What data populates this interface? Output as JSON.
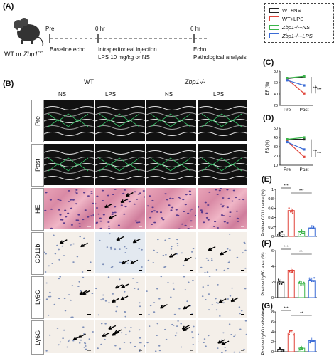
{
  "panels": {
    "a": "(A)",
    "b": "(B)",
    "c": "(C)",
    "d": "(D)",
    "e": "(E)",
    "f": "(F)",
    "g": "(G)"
  },
  "timeline": {
    "mouse_label_pre": "WT or ",
    "mouse_label_gene": "Zbp1",
    "mouse_label_sup": "-/-",
    "t0": "Pre",
    "t1": "0 hr",
    "t2": "6 hr",
    "step0": "Baseline echo",
    "step1_line1": "Intraperitoneal injection",
    "step1_line2": "LPS 10 mg/kg or NS",
    "step2_line1": "Echo",
    "step2_line2": "Pathological analysis"
  },
  "legend": [
    {
      "label": "WT+NS",
      "color": "#222222"
    },
    {
      "label": "WT+LPS",
      "color": "#e0443a"
    },
    {
      "label": "Zbp1-/-+NS",
      "color": "#3bb54a"
    },
    {
      "label": "Zbp1-/-+LPS",
      "color": "#3a6bd6"
    }
  ],
  "grid": {
    "group_wt": "WT",
    "group_ko": "Zbp1-/-",
    "cols": [
      "NS",
      "LPS",
      "NS",
      "LPS"
    ],
    "rows": [
      "Pre",
      "Post",
      "HE",
      "CD11b",
      "Ly6C",
      "Ly6G"
    ]
  },
  "chart_data": [
    {
      "panel": "C",
      "type": "line",
      "ylabel": "EF (%)",
      "categories": [
        "Pre",
        "Post"
      ],
      "ylim": [
        20,
        80
      ],
      "yticks": [
        20,
        40,
        60,
        80
      ],
      "series": [
        {
          "name": "WT+NS",
          "values": [
            67,
            70
          ]
        },
        {
          "name": "WT+LPS",
          "values": [
            66,
            41
          ]
        },
        {
          "name": "Zbp1-/-+NS",
          "values": [
            68,
            71
          ]
        },
        {
          "name": "Zbp1-/-+LPS",
          "values": [
            64,
            55
          ]
        }
      ],
      "significance": [
        "***",
        "***"
      ]
    },
    {
      "panel": "D",
      "type": "line",
      "ylabel": "FS (%)",
      "categories": [
        "Pre",
        "Post"
      ],
      "ylim": [
        10,
        50
      ],
      "yticks": [
        10,
        20,
        30,
        40,
        50
      ],
      "series": [
        {
          "name": "WT+NS",
          "values": [
            38,
            38
          ]
        },
        {
          "name": "WT+LPS",
          "values": [
            36,
            19
          ]
        },
        {
          "name": "Zbp1-/-+NS",
          "values": [
            38,
            40
          ]
        },
        {
          "name": "Zbp1-/-+LPS",
          "values": [
            35,
            27
          ]
        }
      ],
      "significance": [
        "***",
        "***"
      ]
    },
    {
      "panel": "E",
      "type": "bar",
      "ylabel": "Positive CD11b area (%)",
      "categories": [
        "WT+NS",
        "WT+LPS",
        "Zbp1-/-+NS",
        "Zbp1-/-+LPS"
      ],
      "values": [
        0.05,
        0.55,
        0.1,
        0.18
      ],
      "ylim": [
        0,
        1.0
      ],
      "yticks": [
        0.0,
        0.2,
        0.4,
        0.6,
        0.8,
        1.0
      ],
      "significance": [
        "***",
        "***"
      ]
    },
    {
      "panel": "F",
      "type": "bar",
      "ylabel": "Positive Ly6C area (%)",
      "categories": [
        "WT+NS",
        "WT+LPS",
        "Zbp1-/-+NS",
        "Zbp1-/-+LPS"
      ],
      "values": [
        2.0,
        3.5,
        1.8,
        2.2
      ],
      "ylim": [
        0,
        6
      ],
      "yticks": [
        0,
        2,
        4,
        6
      ],
      "significance": [
        "***",
        "***"
      ]
    },
    {
      "panel": "G",
      "type": "bar",
      "ylabel": "Positive Ly6G cells/View",
      "categories": [
        "WT+NS",
        "WT+LPS",
        "Zbp1-/-+NS",
        "Zbp1-/-+LPS"
      ],
      "values": [
        0.5,
        3.8,
        0.7,
        2.3
      ],
      "ylim": [
        0,
        8
      ],
      "yticks": [
        0,
        2,
        4,
        6,
        8
      ],
      "significance": [
        "***",
        "**"
      ]
    }
  ]
}
